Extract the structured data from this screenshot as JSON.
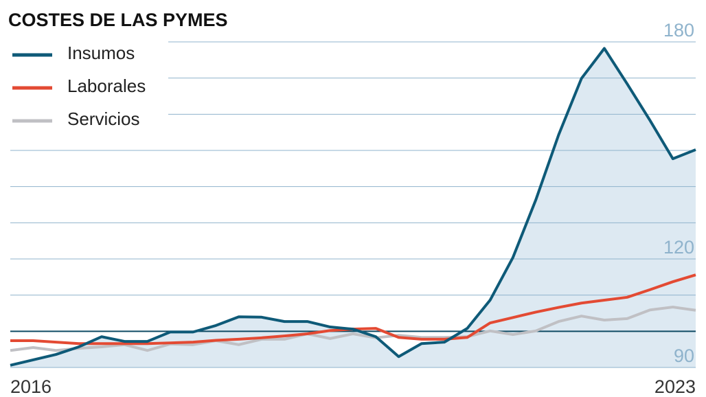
{
  "chart_data": {
    "type": "line",
    "title": "COSTES DE LAS PYMES",
    "categories": [
      "2016",
      null,
      null,
      null,
      null,
      null,
      null,
      null,
      null,
      null,
      null,
      null,
      null,
      null,
      null,
      null,
      null,
      null,
      null,
      null,
      null,
      null,
      null,
      null,
      null,
      null,
      null,
      null,
      null,
      null,
      "2023"
    ],
    "series": [
      {
        "name": "Insumos",
        "color": "#0e5a78",
        "area": true,
        "area_color": "#dde9f2",
        "values": [
          90.6,
          92.1,
          93.6,
          95.7,
          98.5,
          97.2,
          97.2,
          99.8,
          99.8,
          101.6,
          104.0,
          103.9,
          102.7,
          102.7,
          101.2,
          100.6,
          98.5,
          93.0,
          96.6,
          97.0,
          100.8,
          108.6,
          120.4,
          136.3,
          154.3,
          169.9,
          178.2,
          168.4,
          158.3,
          147.7,
          150.2
        ]
      },
      {
        "name": "Laborales",
        "color": "#e34a33",
        "values": [
          97.4,
          97.4,
          97.0,
          96.6,
          96.6,
          96.6,
          96.6,
          96.8,
          97.0,
          97.5,
          97.8,
          98.2,
          98.7,
          99.3,
          100.2,
          100.6,
          100.8,
          98.3,
          97.8,
          97.8,
          98.3,
          102.3,
          103.8,
          105.3,
          106.6,
          107.8,
          108.6,
          109.4,
          111.5,
          113.7,
          115.6
        ]
      },
      {
        "name": "Servicios",
        "color": "#c0c0c4",
        "values": [
          94.7,
          95.5,
          94.7,
          95.3,
          95.7,
          96.3,
          94.7,
          96.5,
          96.3,
          97.4,
          96.3,
          97.8,
          97.8,
          99.3,
          98.0,
          99.3,
          98.2,
          98.9,
          98.3,
          98.3,
          98.5,
          100.1,
          99.1,
          100.1,
          102.7,
          104.2,
          103.1,
          103.5,
          105.9,
          106.7,
          105.8
        ]
      }
    ],
    "ylim": [
      90,
      180
    ],
    "yticks": [
      90,
      120,
      180
    ],
    "grid_lines": [
      100,
      110,
      130,
      140,
      150,
      160,
      170
    ],
    "reference_line": 100,
    "grid": true,
    "legend": "top-left"
  }
}
